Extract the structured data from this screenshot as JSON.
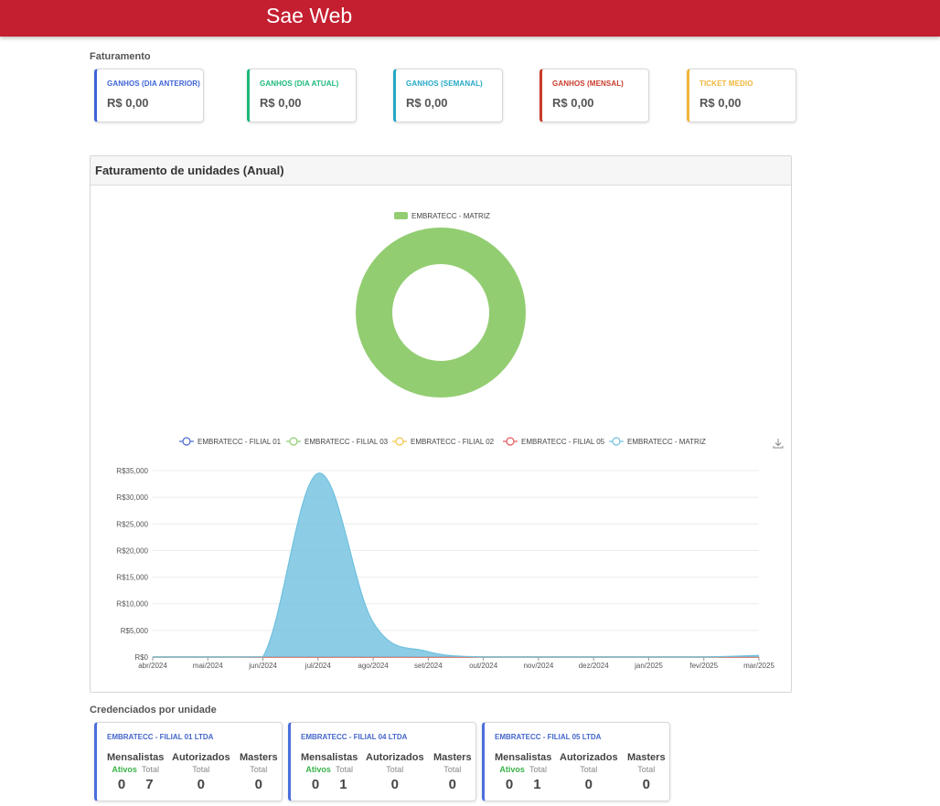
{
  "app": {
    "title": "Sae Web"
  },
  "faturamento": {
    "label": "Faturamento",
    "cards": [
      {
        "label": "GANHOS (DIA ANTERIOR)",
        "value": "R$ 0,00",
        "color": "#3d63d6"
      },
      {
        "label": "GANHOS (DIA ATUAL)",
        "value": "R$ 0,00",
        "color": "#1db87a"
      },
      {
        "label": "GANHOS (SEMANAL)",
        "value": "R$ 0,00",
        "color": "#25a8c4"
      },
      {
        "label": "GANHOS (MENSAL)",
        "value": "R$ 0,00",
        "color": "#c93a2a"
      },
      {
        "label": "TICKET MEDIO",
        "value": "R$ 0,00",
        "color": "#f0b63a"
      }
    ]
  },
  "panel": {
    "title": "Faturamento de unidades (Anual)"
  },
  "donut": {
    "legend": "EMBRATECC - MATRIZ",
    "color": "#93cd72"
  },
  "chart_data": {
    "type": "area",
    "series": [
      {
        "name": "EMBRATECC - FILIAL 01",
        "color": "#4a67cf",
        "values": [
          0,
          0,
          0,
          0,
          0,
          0,
          0,
          0,
          0,
          0,
          0,
          0
        ]
      },
      {
        "name": "EMBRATECC - FILIAL 03",
        "color": "#8fcc6f",
        "values": [
          0,
          0,
          0,
          0,
          0,
          0,
          0,
          0,
          0,
          0,
          0,
          0
        ]
      },
      {
        "name": "EMBRATECC  - FILIAL 02",
        "color": "#f3c34a",
        "values": [
          0,
          0,
          0,
          0,
          0,
          0,
          0,
          0,
          0,
          0,
          0,
          0
        ]
      },
      {
        "name": "EMBRATECC - FILIAL 05",
        "color": "#e45456",
        "values": [
          0,
          0,
          0,
          0,
          0,
          0,
          0,
          0,
          0,
          0,
          0,
          0
        ]
      },
      {
        "name": "EMBRATECC - MATRIZ",
        "color": "#6fc0de",
        "values": [
          0,
          0,
          50,
          34500,
          6500,
          1000,
          0,
          0,
          0,
          0,
          0,
          300
        ]
      }
    ],
    "categories": [
      "abr/2024",
      "mai/2024",
      "jun/2024",
      "jul/2024",
      "ago/2024",
      "set/2024",
      "out/2024",
      "nov/2024",
      "dez/2024",
      "jan/2025",
      "fev/2025",
      "mar/2025"
    ],
    "y_ticks": [
      "R$0",
      "R$5,000",
      "R$10,000",
      "R$15,000",
      "R$20,000",
      "R$25,000",
      "R$30,000",
      "R$35,000"
    ],
    "ylim": [
      0,
      35000
    ],
    "legend_position": "top",
    "grid": true
  },
  "credenciados": {
    "label": "Credenciados por unidade",
    "headers": {
      "mensalistas": "Mensalistas",
      "autorizados": "Autorizados",
      "masters": "Masters",
      "ativos": "Ativos",
      "total": "Total"
    },
    "units": [
      {
        "name": "EMBRATECC - FILIAL 01 LTDA",
        "mensalistas_ativos": "0",
        "mensalistas_total": "7",
        "autorizados_total": "0",
        "masters_total": "0"
      },
      {
        "name": "EMBRATECC - FILIAL 04 LTDA",
        "mensalistas_ativos": "0",
        "mensalistas_total": "1",
        "autorizados_total": "0",
        "masters_total": "0"
      },
      {
        "name": "EMBRATECC - FILIAL 05 LTDA",
        "mensalistas_ativos": "0",
        "mensalistas_total": "1",
        "autorizados_total": "0",
        "masters_total": "0"
      }
    ]
  },
  "icons": {
    "download": "download-icon"
  }
}
